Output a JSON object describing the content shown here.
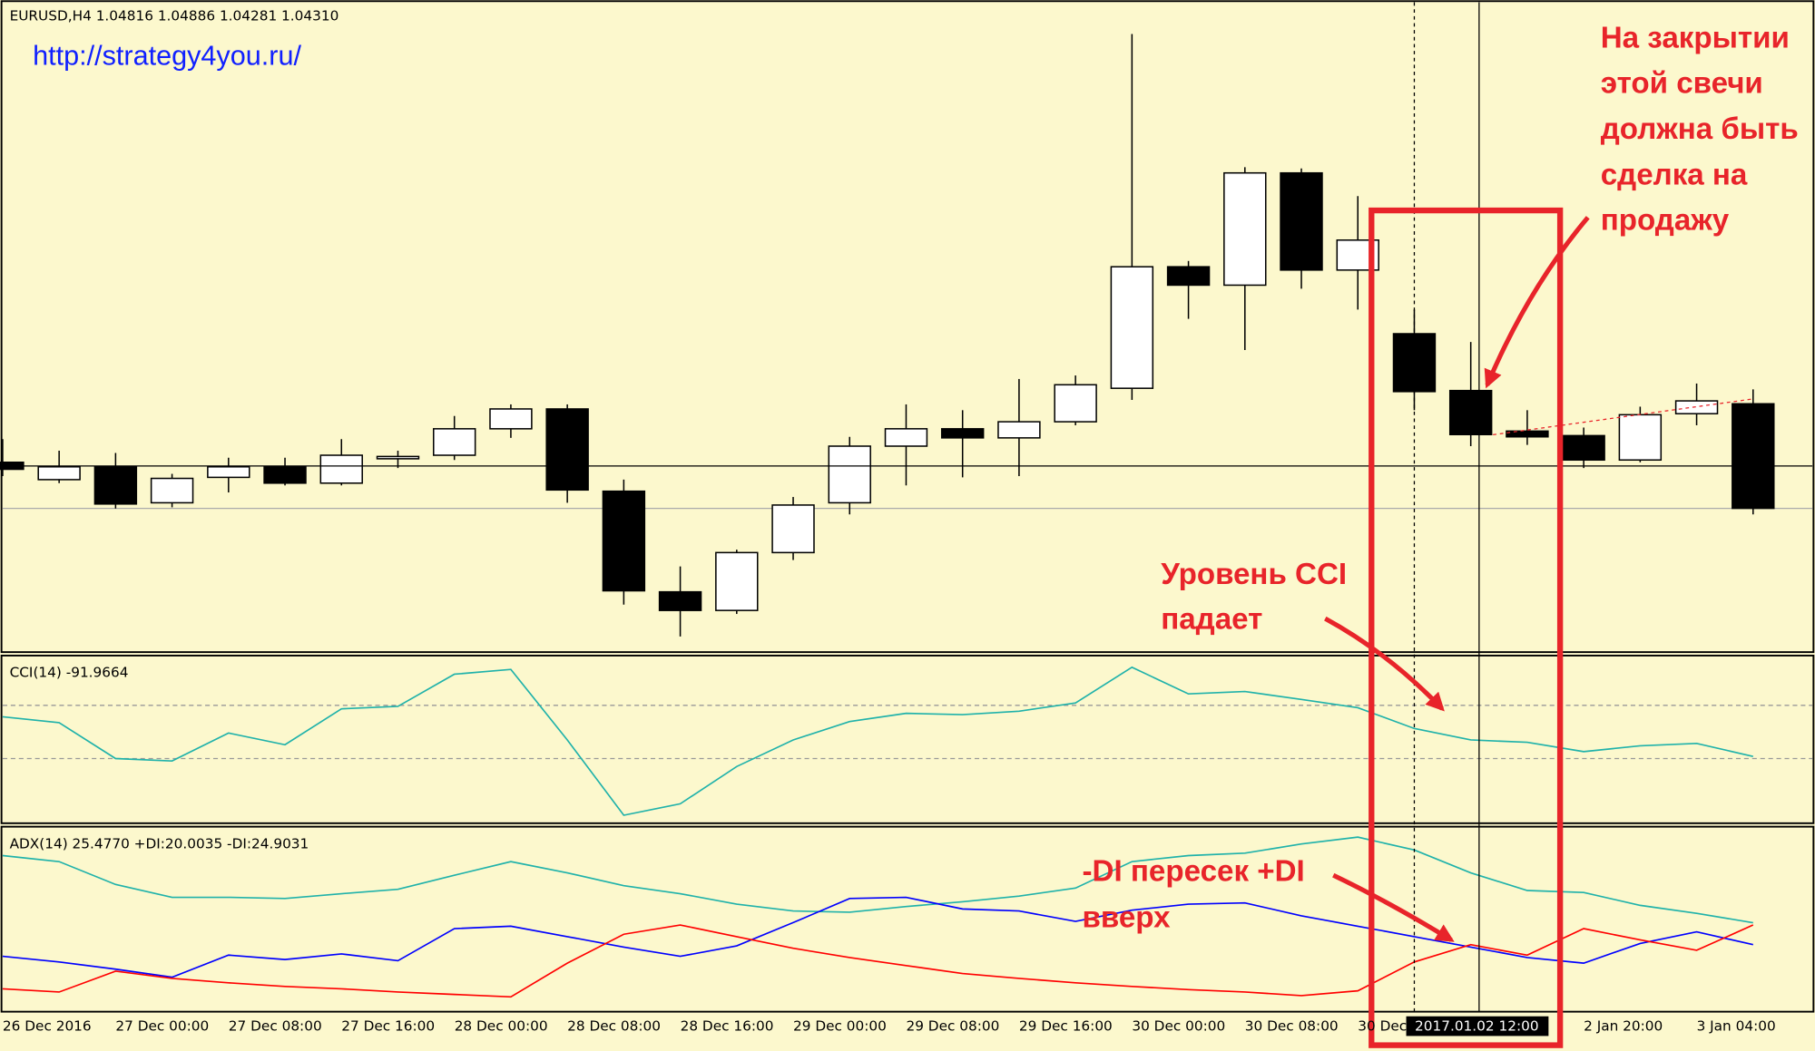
{
  "header": "EURUSD,H4  1.04816 1.04886 1.04281 1.04310",
  "watermark": "http://strategy4you.ru/",
  "chart_data": [
    {
      "type": "candlestick",
      "open": [
        1.04533,
        1.04449,
        1.04511,
        1.04337,
        1.0446,
        1.04511,
        1.04432,
        1.0455,
        1.04567,
        1.04695,
        1.04791,
        1.04393,
        1.03906,
        1.03816,
        1.04096,
        1.04337,
        1.04611,
        1.04695,
        1.04651,
        1.04729,
        1.04891,
        1.05479,
        1.0539,
        1.05933,
        1.05463,
        1.05155,
        1.0488,
        1.04684,
        1.04662,
        1.04544,
        1.04768,
        1.04816
      ],
      "high": [
        1.04645,
        1.04589,
        1.04578,
        1.04477,
        1.04555,
        1.04555,
        1.04645,
        1.04589,
        1.04757,
        1.04813,
        1.04813,
        1.04449,
        1.04029,
        1.0411,
        1.04365,
        1.04656,
        1.04813,
        1.04785,
        1.04936,
        1.04953,
        1.06605,
        1.05507,
        1.05961,
        1.05955,
        1.05821,
        1.05272,
        1.05115,
        1.04785,
        1.04701,
        1.04802,
        1.04914,
        1.04886
      ],
      "low": [
        1.04466,
        1.04432,
        1.04309,
        1.04315,
        1.04387,
        1.04421,
        1.04421,
        1.04505,
        1.04544,
        1.04651,
        1.04337,
        1.03844,
        1.0369,
        1.03799,
        1.0406,
        1.04281,
        1.04421,
        1.0446,
        1.04466,
        1.04712,
        1.04835,
        1.05227,
        1.05076,
        1.05373,
        1.05272,
        1.04785,
        1.04611,
        1.04617,
        1.04505,
        1.04533,
        1.04712,
        1.04281
      ],
      "close": [
        1.04499,
        1.04511,
        1.04331,
        1.04455,
        1.04511,
        1.04432,
        1.04567,
        1.04561,
        1.04695,
        1.04791,
        1.04399,
        1.03911,
        1.03816,
        1.04096,
        1.04326,
        1.04611,
        1.04695,
        1.04651,
        1.04729,
        1.04908,
        1.05479,
        1.0539,
        1.05933,
        1.05463,
        1.05608,
        1.04875,
        1.04667,
        1.04656,
        1.04544,
        1.04763,
        1.0483,
        1.0431
      ],
      "ylim": [
        1.0362,
        1.06753
      ],
      "bid_line": 1.0431,
      "up_color": "#ffffff",
      "down_color": "#000000"
    },
    {
      "type": "line",
      "title": "CCI(14) -91.9664",
      "values": [
        57,
        35,
        -100,
        -109,
        -4,
        -48,
        87,
        96,
        217,
        235,
        -30,
        -313,
        -270,
        -130,
        -30,
        39,
        70,
        65,
        78,
        109,
        243,
        143,
        152,
        122,
        91,
        13,
        -30,
        -39,
        -74,
        -52,
        -43,
        -91.9664
      ],
      "color": "#20b2aa",
      "ylim": [
        -343,
        287
      ],
      "levels": [
        100,
        -100
      ]
    },
    {
      "type": "line",
      "title": "ADX(14) 25.4770 +DI:20.0035 -DI:24.9031",
      "ylim": [
        3.3,
        49.4
      ],
      "series": [
        {
          "color": "#20b2aa",
          "values": [
            42.2,
            40.7,
            35,
            31.8,
            31.8,
            31.5,
            32.7,
            33.8,
            37.3,
            40.7,
            37.9,
            34.7,
            32.7,
            30.1,
            28.4,
            28.1,
            29.5,
            30.7,
            32.1,
            34.1,
            40.7,
            42.2,
            42.8,
            45.1,
            46.8,
            43.6,
            37.9,
            33.5,
            33,
            29.8,
            27.8,
            25.477
          ]
        },
        {
          "color": "#0000ff",
          "values": [
            17.1,
            15.7,
            13.9,
            11.9,
            17.4,
            16.3,
            17.7,
            16,
            24,
            24.6,
            22,
            19.4,
            17.1,
            19.7,
            25.5,
            31.5,
            31.8,
            28.9,
            28.4,
            25.8,
            28.6,
            30.1,
            30.4,
            27.2,
            24.6,
            22,
            19.4,
            16.8,
            15.4,
            20.3,
            23.2,
            20.0035
          ]
        },
        {
          "color": "#ff0000",
          "values": [
            9,
            8.2,
            13.4,
            11.6,
            10.5,
            9.6,
            9,
            8.2,
            7.6,
            7,
            15.4,
            22.6,
            24.9,
            22,
            19.1,
            16.8,
            14.8,
            12.8,
            11.6,
            10.5,
            9.6,
            8.8,
            8.2,
            7.3,
            8.5,
            15.7,
            20,
            17.4,
            24,
            21.2,
            18.6,
            24.9031
          ]
        }
      ]
    }
  ],
  "x_axis": {
    "labels": [
      "26 Dec 2016",
      "27 Dec 00:00",
      "27 Dec 08:00",
      "27 Dec 16:00",
      "28 Dec 00:00",
      "28 Dec 08:00",
      "28 Dec 16:00",
      "29 Dec 00:00",
      "29 Dec 08:00",
      "29 Dec 16:00",
      "30 Dec 00:00",
      "30 Dec 08:00",
      "30 Dec",
      null,
      "2 Jan 20:00",
      "3 Jan 04:00"
    ],
    "crosshair_label": "2017.01.02 12:00"
  },
  "annotations": [
    {
      "lines": [
        "На закрытии",
        "этой свечи",
        "должна быть",
        "сделка на",
        "продажу"
      ]
    },
    {
      "lines": [
        "Уровень CCI",
        "падает"
      ]
    },
    {
      "lines": [
        "-DI пересек +DI",
        "вверх"
      ]
    }
  ]
}
